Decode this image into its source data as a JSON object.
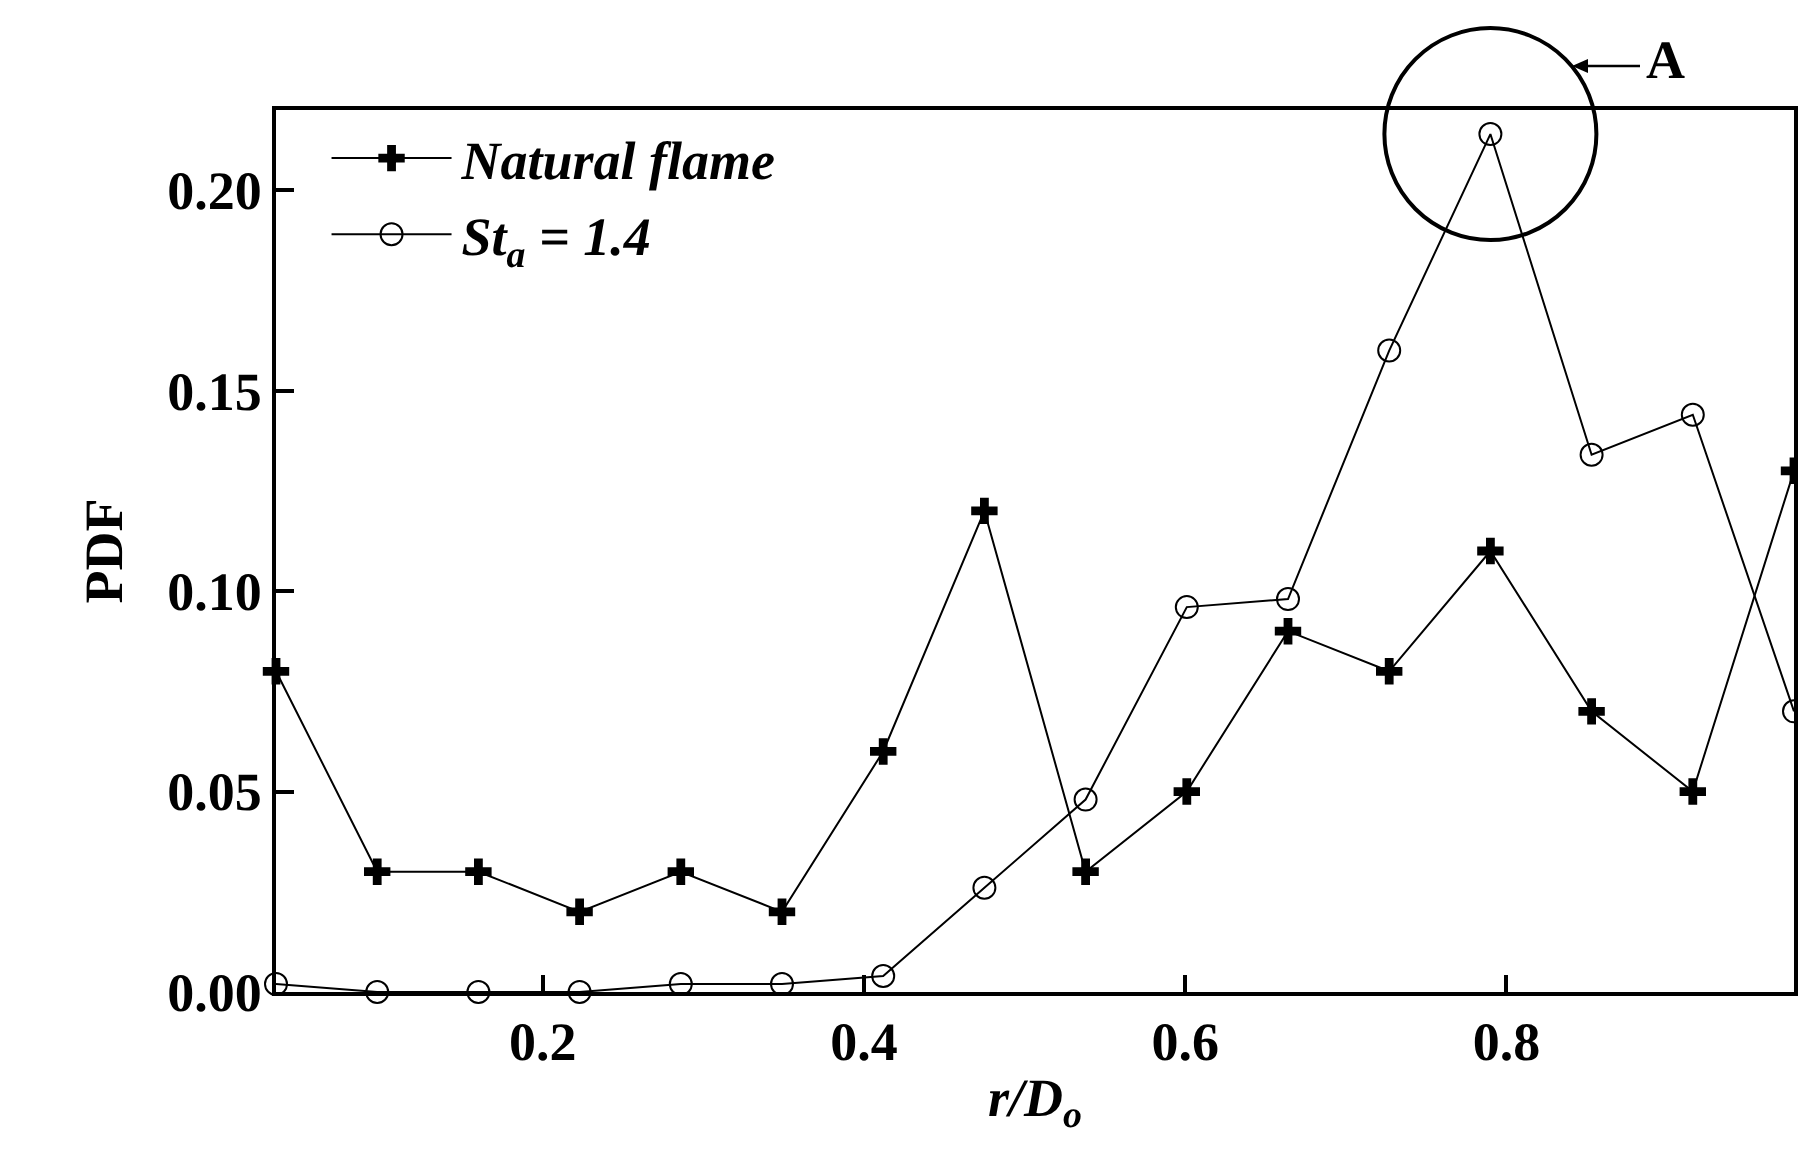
{
  "chart_data": {
    "type": "line",
    "xlabel": "r/D$_{o}$",
    "ylabel": "PDF",
    "x": [
      0.034,
      0.097,
      0.16,
      0.223,
      0.286,
      0.349,
      0.412,
      0.475,
      0.538,
      0.601,
      0.664,
      0.727,
      0.79,
      0.853,
      0.916,
      0.979
    ],
    "series": [
      {
        "name": "Natural flame",
        "color": "#000000",
        "marker": "cross",
        "values": [
          0.08,
          0.03,
          0.03,
          0.02,
          0.03,
          0.02,
          0.06,
          0.12,
          0.03,
          0.05,
          0.09,
          0.08,
          0.11,
          0.07,
          0.05,
          0.13
        ]
      },
      {
        "name": "St$_{a}$ = 1.4",
        "color": "#000000",
        "marker": "circle",
        "values": [
          0.002,
          0,
          0,
          0,
          0.002,
          0.002,
          0.004,
          0.026,
          0.048,
          0.096,
          0.098,
          0.16,
          0.214,
          0.134,
          0.144,
          0.07
        ]
      }
    ],
    "xlim": [
      0.034,
      0.979
    ],
    "xticks": [
      0.2,
      0.4,
      0.6,
      0.8
    ],
    "ylim": [
      0,
      0.22
    ],
    "yticks": [
      {
        "value": 0,
        "label": "0.00"
      },
      {
        "value": 0.05,
        "label": "0.05"
      },
      {
        "value": 0.1,
        "label": "0.10"
      },
      {
        "value": 0.15,
        "label": "0.15"
      },
      {
        "value": 0.2,
        "label": "0.20"
      }
    ],
    "annotations": [
      {
        "text": "A",
        "x": 0.79,
        "y": 0.214
      }
    ],
    "legend": "top left",
    "grid": false,
    "line_style": "solid"
  }
}
